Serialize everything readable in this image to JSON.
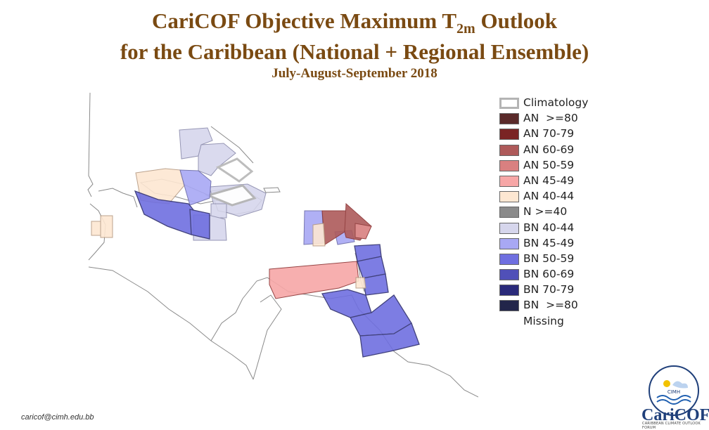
{
  "title": {
    "line1_main": "CariCOF Objective Maximum T",
    "line1_sub": "2m",
    "line1_tail": " Outlook",
    "line2": "for the Caribbean (National + Regional Ensemble)",
    "period": "July-August-September 2018"
  },
  "legend": [
    {
      "label": "Climatology",
      "color": "#ffffff",
      "kind": "clim"
    },
    {
      "label": "AN  >=80",
      "color": "#5a2a2a"
    },
    {
      "label": "AN 70-79",
      "color": "#7a2424"
    },
    {
      "label": "AN 60-69",
      "color": "#ae5a5a"
    },
    {
      "label": "AN 50-59",
      "color": "#d98080"
    },
    {
      "label": "AN 45-49",
      "color": "#f7a7a7"
    },
    {
      "label": "AN 40-44",
      "color": "#fde7d2"
    },
    {
      "label": "N >=40",
      "color": "#8a8a8a"
    },
    {
      "label": "BN 40-44",
      "color": "#d6d6ec"
    },
    {
      "label": "BN 45-49",
      "color": "#a8a8f4"
    },
    {
      "label": "BN 50-59",
      "color": "#6f6fe0"
    },
    {
      "label": "BN 60-69",
      "color": "#5050b8"
    },
    {
      "label": "BN 70-79",
      "color": "#2a2a7a"
    },
    {
      "label": "BN  >=80",
      "color": "#22254a"
    },
    {
      "label": "Missing",
      "color": "",
      "kind": "none"
    }
  ],
  "email": "caricof@cimh.edu.bb",
  "logo": {
    "name": "CariCOF",
    "subtitle": "CARIBBEAN CLIMATE OUTLOOK FORUM",
    "badge_text": "CIMH"
  }
}
